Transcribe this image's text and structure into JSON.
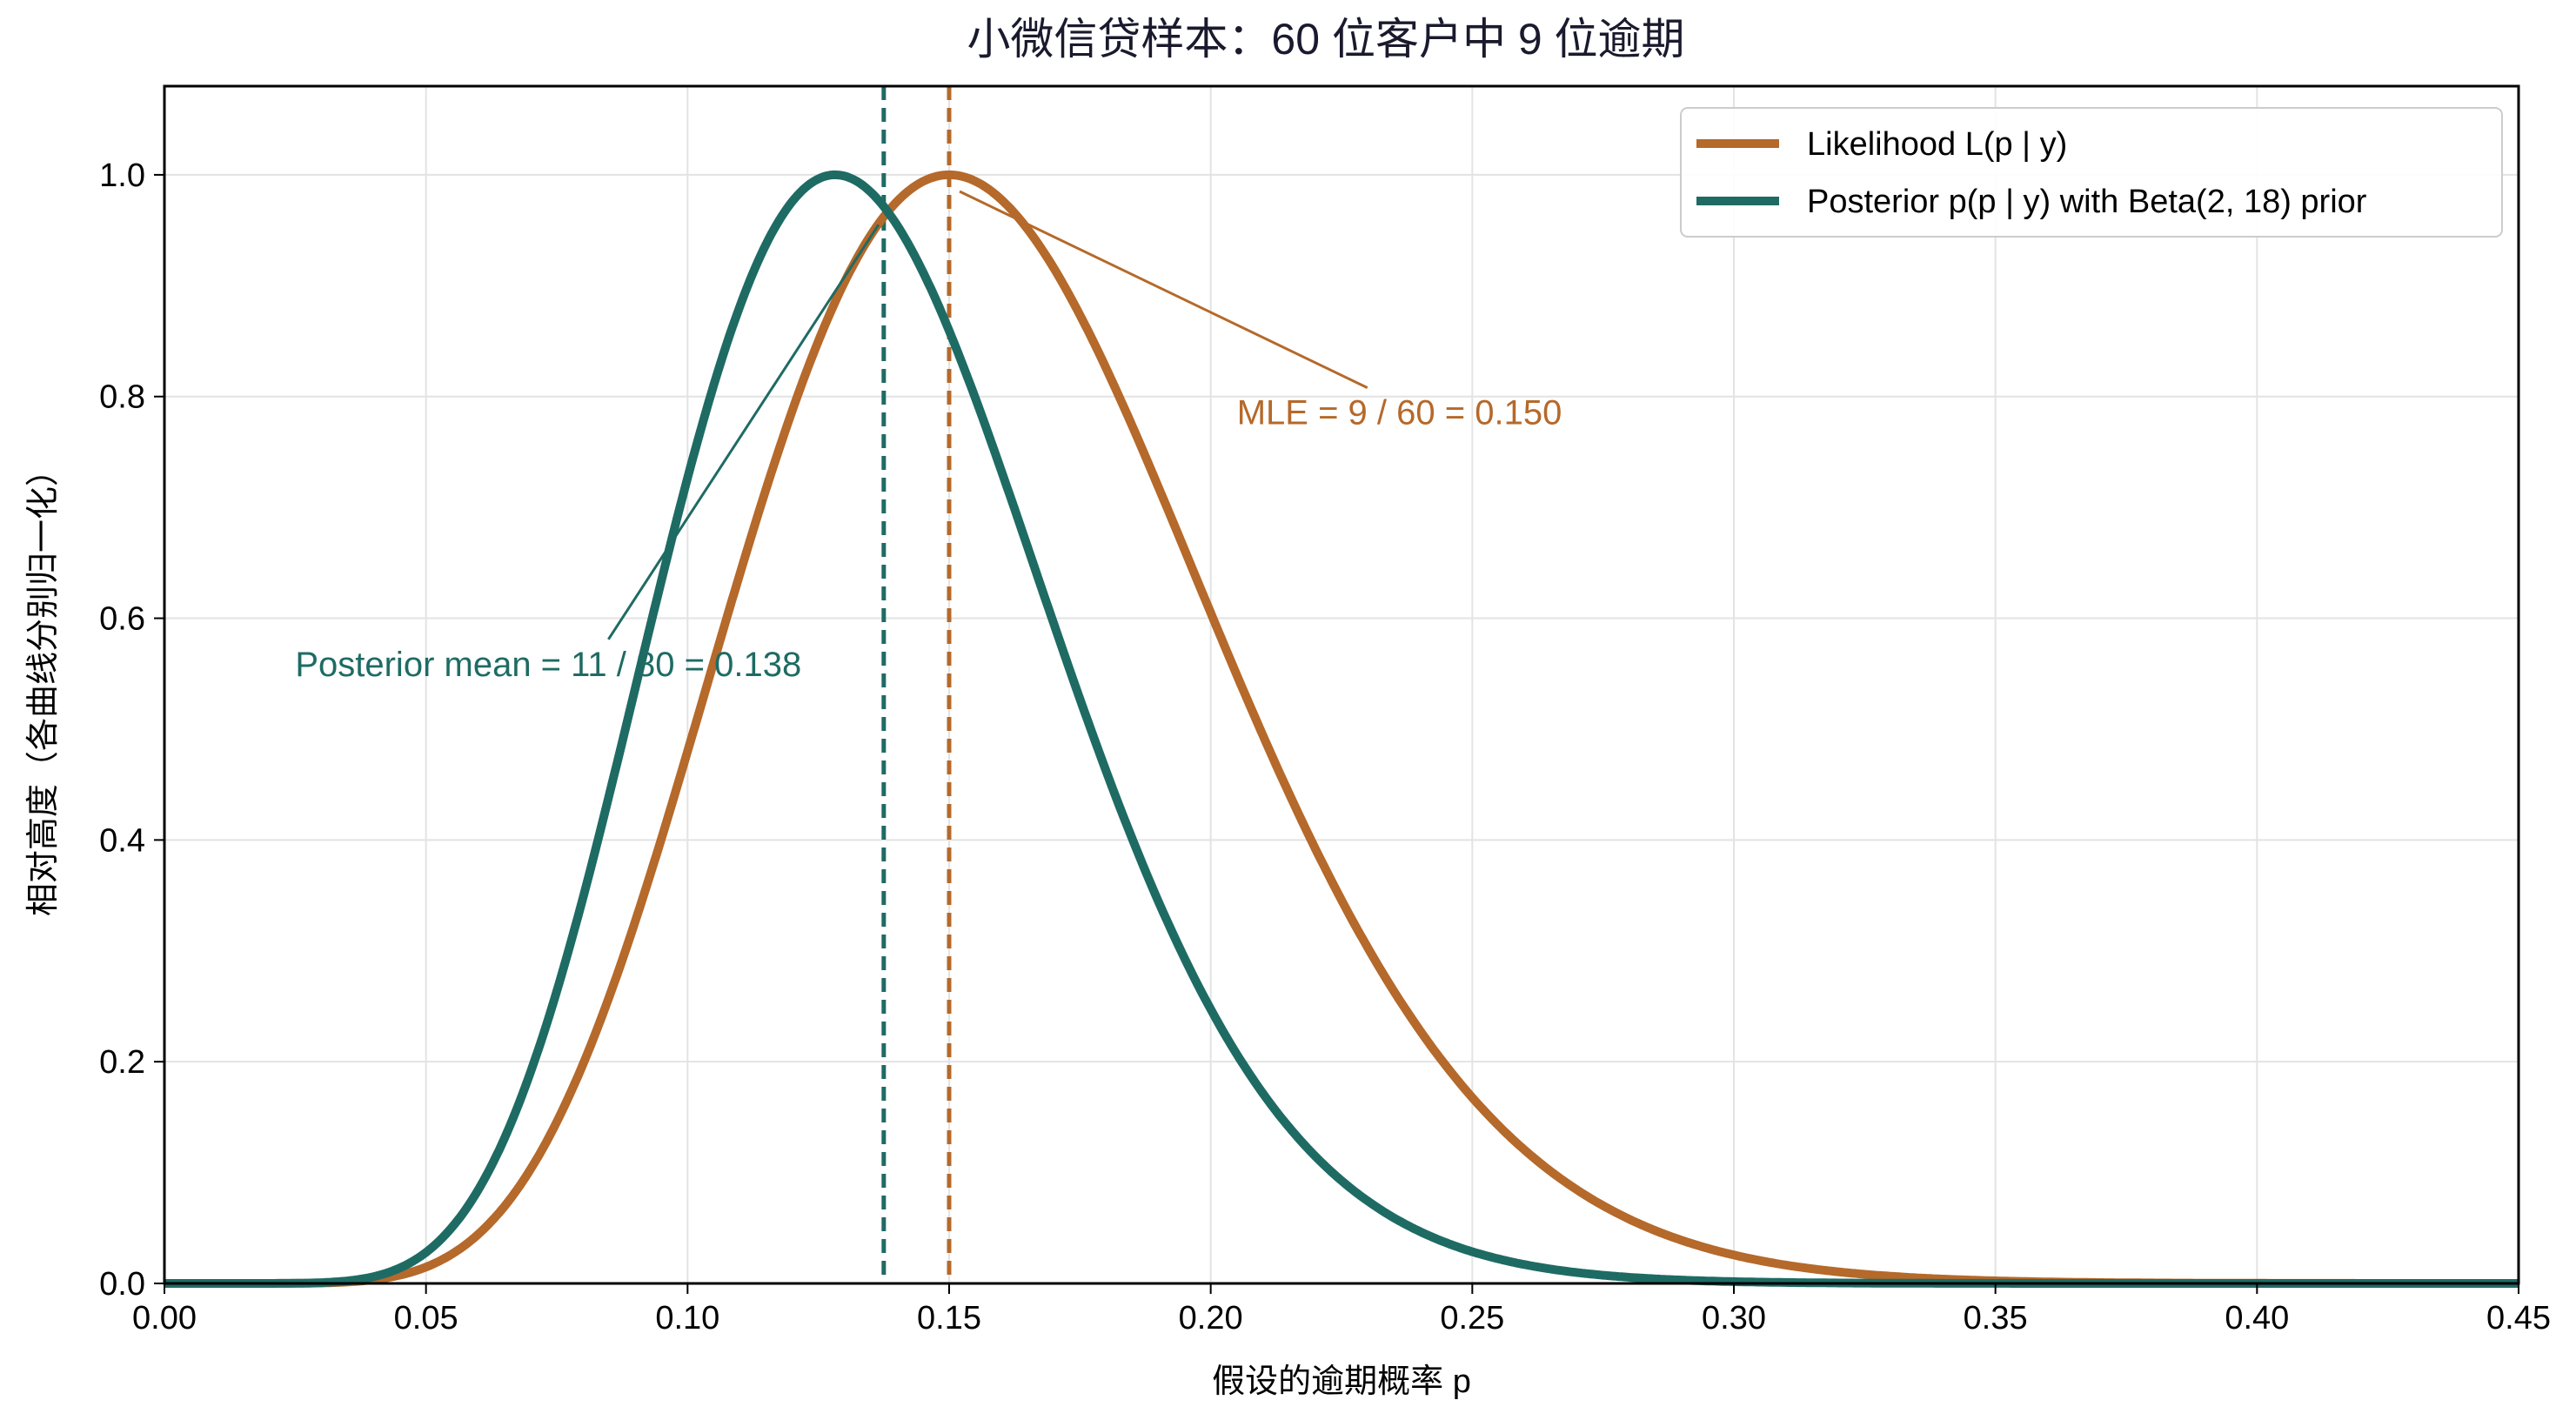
{
  "chart_data": {
    "type": "line",
    "title": "小微信贷样本：60 位客户中 9 位逾期",
    "xlabel": "假设的逾期概率 p",
    "ylabel": "相对高度（各曲线分别归一化）",
    "xlim": [
      0.0,
      0.45
    ],
    "ylim": [
      0.0,
      1.08
    ],
    "xticks": [
      0.0,
      0.05,
      0.1,
      0.15,
      0.2,
      0.25,
      0.3,
      0.35,
      0.4,
      0.45
    ],
    "xtick_labels": [
      "0.00",
      "0.05",
      "0.10",
      "0.15",
      "0.20",
      "0.25",
      "0.30",
      "0.35",
      "0.40",
      "0.45"
    ],
    "yticks": [
      0.0,
      0.2,
      0.4,
      0.6,
      0.8,
      1.0
    ],
    "ytick_labels": [
      "0.0",
      "0.2",
      "0.4",
      "0.6",
      "0.8",
      "1.0"
    ],
    "grid": true,
    "legend_position": "top-right",
    "series": [
      {
        "name": "Likelihood L(p | y)",
        "color": "#b5692a",
        "curve": {
          "k": 9,
          "n": 60
        },
        "mode_line_x": 0.15
      },
      {
        "name": "Posterior p(p | y) with Beta(2, 18) prior",
        "color": "#1e6b64",
        "curve": {
          "k": 10,
          "n": 78
        },
        "mode_line_x": 0.1375
      }
    ],
    "annotations": [
      {
        "text": "MLE = 9 / 60 = 0.150",
        "color": "#b5692a",
        "text_at": [
          0.205,
          0.775
        ],
        "arrow_to": [
          0.152,
          0.985
        ]
      },
      {
        "text": "Posterior mean = 11 / 80 = 0.138",
        "color": "#1e6b64",
        "text_at": [
          0.025,
          0.548
        ],
        "arrow_to": [
          0.1365,
          0.955
        ]
      }
    ]
  }
}
